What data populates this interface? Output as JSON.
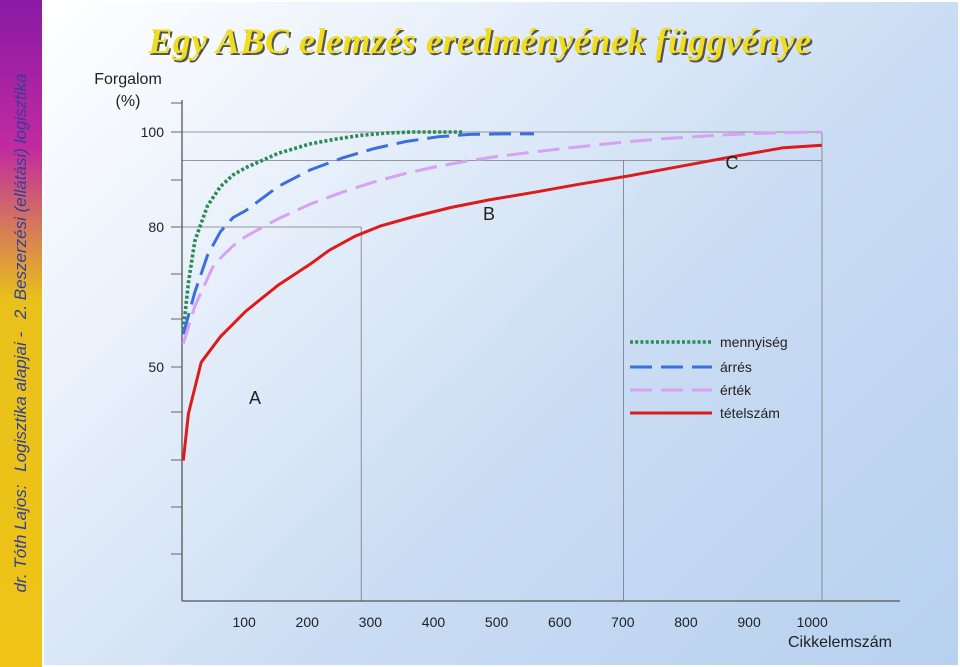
{
  "sidebar": {
    "author": "dr. Tóth Lajos:",
    "course": "Logisztika alapjai -",
    "chapter": "2. Beszerzési (ellátási) logisztika"
  },
  "chart_data": {
    "type": "line",
    "title": "Egy ABC elemzés eredményének függvénye",
    "ylabel": "Forgalom (%)",
    "xlabel": "Cikkelemszám",
    "y_ticks": [
      100,
      80,
      50
    ],
    "x_ticks": [
      100,
      200,
      300,
      400,
      500,
      600,
      700,
      800,
      900,
      1000
    ],
    "region_labels": [
      "A",
      "B",
      "C"
    ],
    "legend_position": "right",
    "series": [
      {
        "name": "mennyiség",
        "style": "dotted",
        "color": "#2e8a55",
        "x": [
          2,
          10,
          20,
          40,
          60,
          80,
          100,
          150,
          200,
          240,
          280,
          320,
          360,
          400,
          440
        ],
        "y": [
          58,
          68,
          77,
          84.5,
          88.5,
          91,
          92.5,
          95.5,
          97.5,
          98.5,
          99.3,
          99.8,
          100,
          100,
          100
        ]
      },
      {
        "name": "árrés",
        "style": "dashed",
        "color": "#3b6fdc",
        "x": [
          2,
          20,
          40,
          60,
          80,
          100,
          150,
          200,
          250,
          300,
          350,
          400,
          450,
          500,
          550
        ],
        "y": [
          57,
          66,
          74,
          79,
          82,
          83.5,
          88.5,
          92,
          94.5,
          96.5,
          98,
          99,
          99.5,
          99.6,
          99.6
        ]
      },
      {
        "name": "érték",
        "style": "dashed",
        "color": "#d7a2f2",
        "x": [
          2,
          20,
          50,
          80,
          100,
          150,
          200,
          250,
          300,
          350,
          400,
          450,
          500,
          550,
          600,
          650,
          700,
          750,
          800,
          850,
          900,
          950,
          1000
        ],
        "y": [
          55,
          63,
          72,
          76,
          78,
          81.7,
          84.8,
          87.3,
          89.5,
          91.3,
          92.8,
          94,
          95,
          95.8,
          96.6,
          97.3,
          98,
          98.6,
          99,
          99.4,
          99.7,
          99.9,
          100
        ]
      },
      {
        "name": "tételszám",
        "style": "solid",
        "color": "#de1b1b",
        "x": [
          2,
          10,
          30,
          60,
          100,
          150,
          200,
          230,
          270,
          310,
          360,
          420,
          480,
          550,
          620,
          700,
          780,
          860,
          940,
          1000
        ],
        "y": [
          38,
          44,
          51,
          56.5,
          62,
          67.5,
          72,
          75,
          78,
          80.2,
          82.1,
          84.1,
          85.7,
          87.3,
          89,
          90.8,
          92.8,
          94.8,
          96.7,
          97.2
        ]
      }
    ]
  }
}
